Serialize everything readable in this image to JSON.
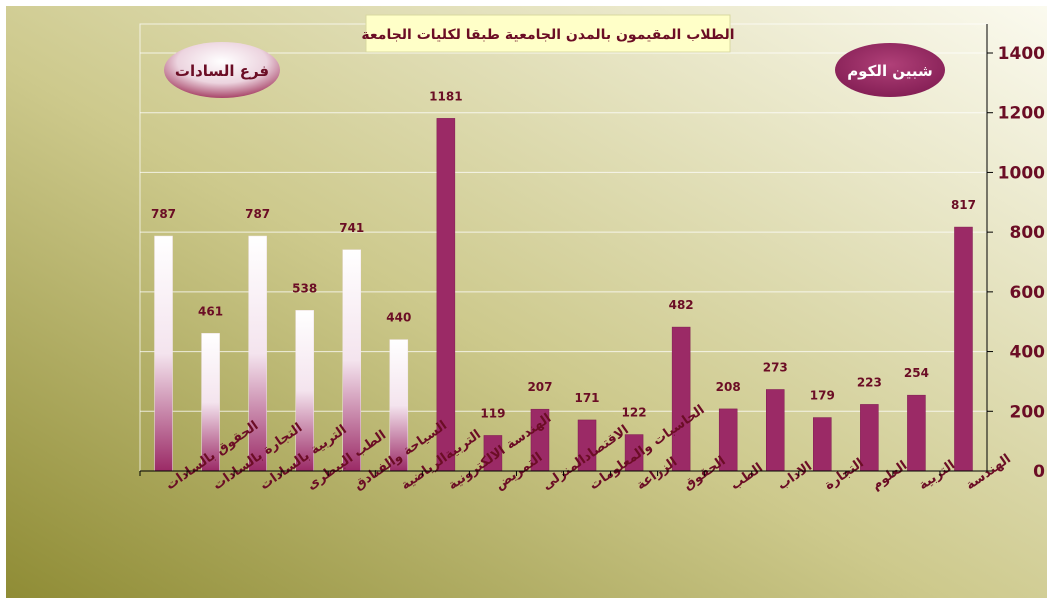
{
  "chart_data": {
    "type": "bar",
    "title": "الطلاب المقيمون بالمدن الجامعية طبقا لكليات الجامعة",
    "xlabel": "",
    "ylabel": "",
    "ylim": [
      0,
      1400
    ],
    "yticks": [
      0,
      200,
      400,
      600,
      800,
      1000,
      1200,
      1400
    ],
    "grid": true,
    "groups": [
      {
        "label": "فرع السادات",
        "color": "#fff8ff",
        "colorBottom": "#9b2a66"
      },
      {
        "label": "شبين الكوم",
        "color": "#9b2a66"
      }
    ],
    "categories": [
      "الحقوق بالسادات",
      "التجارة بالسادات",
      "التربية بالسادات",
      "الطب البيطرى",
      "السياحة والفنادق",
      "التربيةالرياضية",
      "الهندسة الالكترونية",
      "التمريض",
      "الاقتصادالمنزلى",
      "الحاسبات والمعلومات",
      "الزراعة",
      "الحقوق",
      "الطب",
      "الاداب",
      "التجارة",
      "العلوم",
      "التربية",
      "الهندسة"
    ],
    "values": [
      787,
      461,
      787,
      538,
      741,
      440,
      1181,
      119,
      207,
      171,
      122,
      482,
      208,
      273,
      179,
      223,
      254,
      817
    ],
    "group_index": [
      0,
      0,
      0,
      0,
      0,
      0,
      1,
      1,
      1,
      1,
      1,
      1,
      1,
      1,
      1,
      1,
      1,
      1
    ],
    "colors": {
      "text": "#6b0d25",
      "bar_solid": "#9b2a66",
      "axis": "#000000",
      "grid": "#ffffff",
      "title_box": "#ffffc8"
    }
  }
}
